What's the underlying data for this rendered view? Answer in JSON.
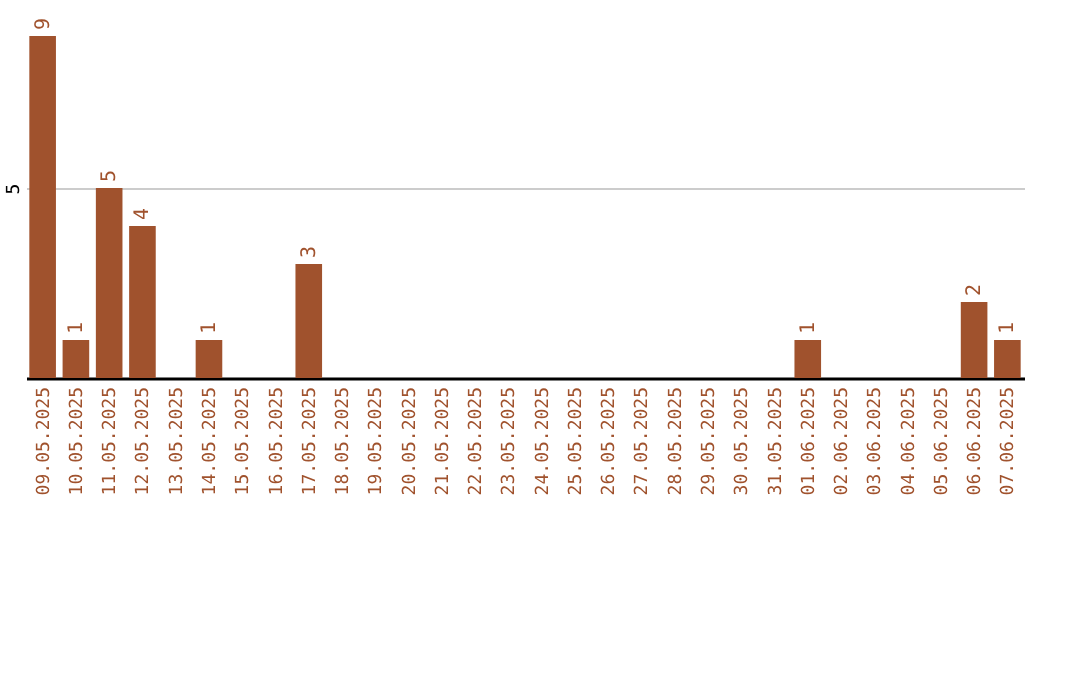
{
  "chart_data": {
    "type": "bar",
    "categories": [
      "09.05.2025",
      "10.05.2025",
      "11.05.2025",
      "12.05.2025",
      "13.05.2025",
      "14.05.2025",
      "15.05.2025",
      "16.05.2025",
      "17.05.2025",
      "18.05.2025",
      "19.05.2025",
      "20.05.2025",
      "21.05.2025",
      "22.05.2025",
      "23.05.2025",
      "24.05.2025",
      "25.05.2025",
      "26.05.2025",
      "27.05.2025",
      "28.05.2025",
      "29.05.2025",
      "30.05.2025",
      "31.05.2025",
      "01.06.2025",
      "02.06.2025",
      "03.06.2025",
      "04.06.2025",
      "05.06.2025",
      "06.06.2025",
      "07.06.2025"
    ],
    "values": [
      9,
      1,
      5,
      4,
      0,
      1,
      0,
      0,
      3,
      0,
      0,
      0,
      0,
      0,
      0,
      0,
      0,
      0,
      0,
      0,
      0,
      0,
      0,
      1,
      0,
      0,
      0,
      0,
      2,
      1
    ],
    "value_labels": [
      "9",
      "1",
      "5",
      "4",
      null,
      "1",
      null,
      null,
      "3",
      null,
      null,
      null,
      null,
      null,
      null,
      null,
      null,
      null,
      null,
      null,
      null,
      null,
      null,
      "1",
      null,
      null,
      null,
      null,
      "2",
      "1"
    ],
    "color": "#a0522d",
    "ylim": [
      0,
      9
    ],
    "yticks": [
      5
    ],
    "grid": "y"
  }
}
